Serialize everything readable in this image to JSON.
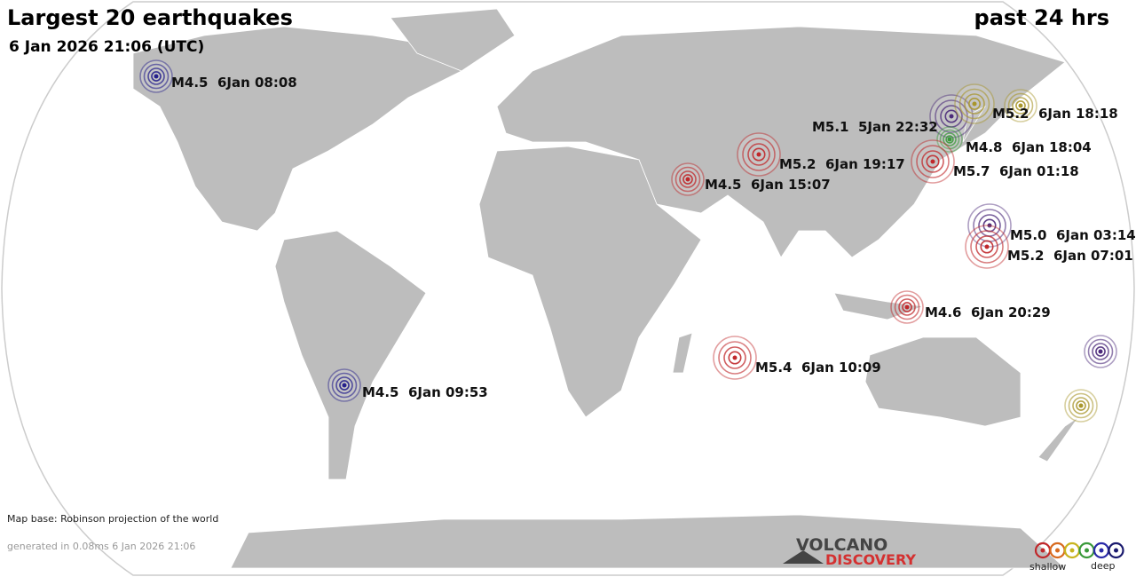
{
  "header": {
    "title": "Largest 20 earthquakes",
    "period": "past 24 hrs",
    "timestamp": "6 Jan 2026 21:06 (UTC)"
  },
  "quakes": [
    {
      "label": "M4.5  6Jan 08:08",
      "color": "#26208c"
    },
    {
      "label": "M5.2  6Jan 18:18",
      "color": "#a8962c"
    },
    {
      "label": "M5.1  5Jan 22:32",
      "color": "#4b2a7a"
    },
    {
      "label": "M4.8  6Jan 18:04",
      "color": "#3a9a3a"
    },
    {
      "label": "M5.2  6Jan 19:17",
      "color": "#c0282b"
    },
    {
      "label": "M5.7  6Jan 01:18",
      "color": "#c0282b"
    },
    {
      "label": "M4.5  6Jan 15:07",
      "color": "#c0282b"
    },
    {
      "label": "M5.0  6Jan 03:14",
      "color": "#4b2a7a"
    },
    {
      "label": "M5.2  6Jan 07:01",
      "color": "#c0282b"
    },
    {
      "label": "M4.6  6Jan 20:29",
      "color": "#c0282b"
    },
    {
      "label": "M5.4  6Jan 10:09",
      "color": "#c0282b"
    },
    {
      "label": "M4.5  6Jan 09:53",
      "color": "#26208c"
    },
    {
      "color": "#a8962c"
    },
    {
      "color": "#4b2a7a"
    },
    {
      "color": "#a8962c"
    }
  ],
  "footer": {
    "map_base": "Map base: Robinson projection of the world",
    "generated": "generated in 0.08ms  6 Jan 2026 21:06",
    "logo_top": "VOLCANO",
    "logo_bottom": "DISCOVERY"
  },
  "legend": {
    "shallow": "shallow",
    "deep": "deep",
    "colors": [
      "#c0282b",
      "#d86a1e",
      "#c8b41e",
      "#3a9a3a",
      "#2a2aa8",
      "#1a1a6e"
    ]
  }
}
